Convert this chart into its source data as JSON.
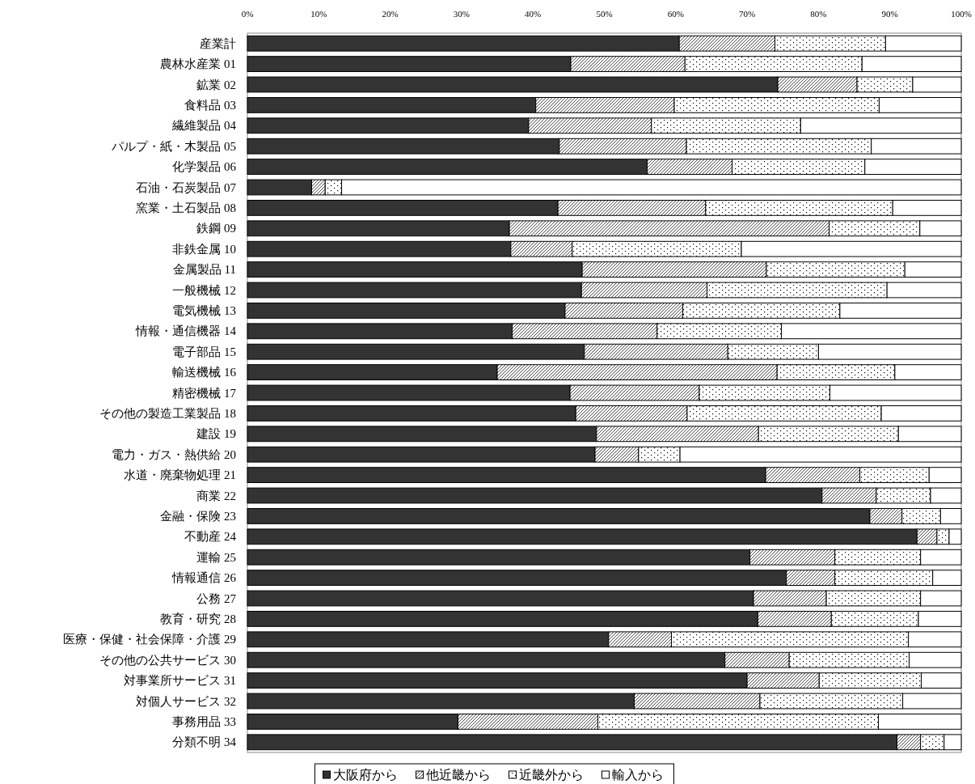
{
  "chart_data": {
    "type": "bar",
    "orientation": "horizontal",
    "stacked": true,
    "categories": [
      "産業計",
      "農林水産業 01",
      "鉱業 02",
      "食料品 03",
      "繊維製品 04",
      "パルプ・紙・木製品 05",
      "化学製品 06",
      "石油・石炭製品 07",
      "窯業・土石製品 08",
      "鉄鋼 09",
      "非鉄金属 10",
      "金属製品 11",
      "一般機械 12",
      "電気機械 13",
      "情報・通信機器 14",
      "電子部品 15",
      "輸送機械 16",
      "精密機械 17",
      "その他の製造工業製品 18",
      "建設 19",
      "電力・ガス・熱供給 20",
      "水道・廃棄物処理 21",
      "商業 22",
      "金融・保険 23",
      "不動産 24",
      "運輸 25",
      "情報通信 26",
      "公務 27",
      "教育・研究 28",
      "医療・保健・社会保障・介護 29",
      "その他の公共サービス 30",
      "対事業所サービス 31",
      "対個人サービス 32",
      "事務用品 33",
      "分類不明 34"
    ],
    "series": [
      {
        "name": "大阪府から",
        "color": "#333333",
        "values": [
          60.5,
          45.3,
          74.3,
          40.4,
          39.4,
          43.7,
          56.0,
          9.0,
          43.5,
          36.7,
          36.9,
          46.9,
          46.8,
          44.5,
          37.1,
          47.2,
          35.0,
          45.2,
          46.0,
          48.9,
          48.7,
          72.6,
          80.5,
          87.2,
          93.8,
          70.4,
          75.5,
          70.9,
          71.5,
          50.6,
          66.9,
          70.0,
          54.2,
          29.5,
          91.0
        ]
      },
      {
        "name": "他近畿から",
        "color": "#000000",
        "values": [
          13.4,
          16.0,
          11.1,
          19.4,
          17.2,
          17.8,
          11.9,
          1.9,
          20.7,
          44.8,
          8.6,
          25.8,
          17.6,
          16.5,
          20.3,
          20.1,
          39.2,
          18.1,
          15.6,
          22.7,
          6.1,
          13.2,
          7.6,
          4.5,
          2.8,
          11.9,
          6.8,
          10.2,
          10.3,
          8.8,
          9.0,
          10.1,
          17.6,
          19.6,
          3.3
        ]
      },
      {
        "name": "近畿外から",
        "color": "#000000",
        "values": [
          15.5,
          24.8,
          7.8,
          28.7,
          20.9,
          25.9,
          18.6,
          2.3,
          26.2,
          12.7,
          23.7,
          19.4,
          25.2,
          22.0,
          17.4,
          12.7,
          16.5,
          18.3,
          27.2,
          19.6,
          5.8,
          9.7,
          7.6,
          5.4,
          1.7,
          12.0,
          13.7,
          13.2,
          12.2,
          33.2,
          16.8,
          14.3,
          20.0,
          39.3,
          3.3
        ]
      },
      {
        "name": "輸入から",
        "color": "#ffffff",
        "values": [
          10.6,
          13.9,
          6.8,
          11.5,
          22.5,
          12.6,
          13.5,
          86.8,
          9.6,
          5.8,
          30.8,
          7.9,
          10.4,
          17.0,
          25.2,
          20.0,
          9.3,
          18.4,
          11.2,
          8.8,
          39.4,
          4.5,
          4.3,
          2.9,
          1.7,
          5.7,
          4.0,
          5.7,
          6.0,
          7.4,
          7.3,
          5.6,
          8.2,
          11.6,
          2.4
        ]
      }
    ],
    "xlim": [
      0,
      100
    ],
    "xticks": [
      {
        "value": 0,
        "label": "0%"
      },
      {
        "value": 10,
        "label": "10%"
      },
      {
        "value": 20,
        "label": "20%"
      },
      {
        "value": 30,
        "label": "30%"
      },
      {
        "value": 40,
        "label": "40%"
      },
      {
        "value": 50,
        "label": "50%"
      },
      {
        "value": 60,
        "label": "60%"
      },
      {
        "value": 70,
        "label": "70%"
      },
      {
        "value": 80,
        "label": "80%"
      },
      {
        "value": 90,
        "label": "90%"
      },
      {
        "value": 100,
        "label": "100%"
      }
    ],
    "legend": "bottom",
    "grid": false
  }
}
